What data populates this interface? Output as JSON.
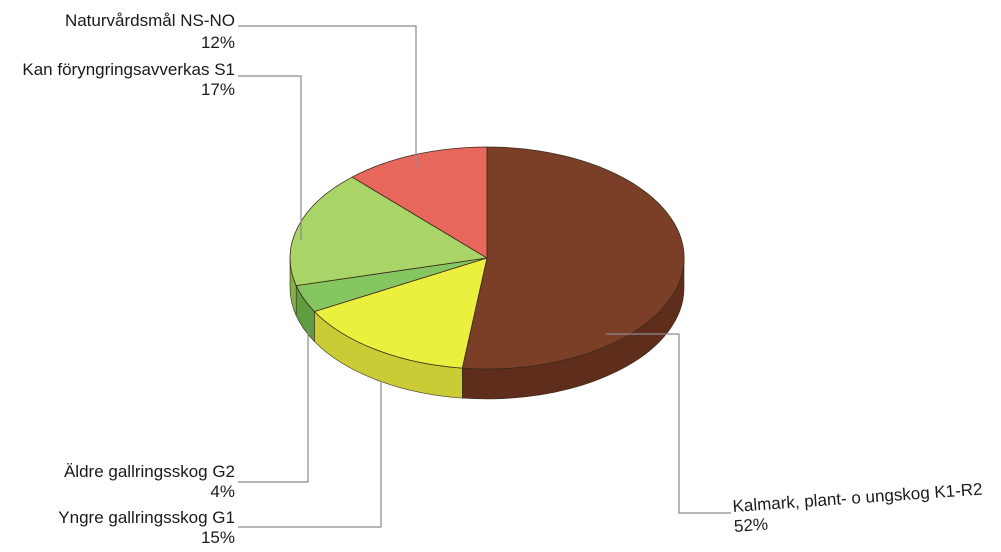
{
  "chart_data": {
    "type": "pie",
    "style": "3d",
    "legend": "none",
    "slices": [
      {
        "label": "Kalmark, plant- o ungskog K1-R2",
        "percent_label": "52%",
        "value": 52,
        "color": "#7b3f28",
        "side_color": "#5f2d1b"
      },
      {
        "label": "Yngre gallringsskog G1",
        "percent_label": "15%",
        "value": 15,
        "color": "#ebef3e",
        "side_color": "#c9cc35"
      },
      {
        "label": "Äldre gallringsskog G2",
        "percent_label": "4%",
        "value": 4,
        "color": "#86c660",
        "side_color": "#5f9b3f"
      },
      {
        "label": "Kan föryngringsavverkas S1",
        "percent_label": "17%",
        "value": 17,
        "color": "#a8d468",
        "side_color": "#86b04e"
      },
      {
        "label": "Naturvårdsmål NS-NO",
        "percent_label": "12%",
        "value": 12,
        "color": "#e8675d",
        "side_color": "#c24e45"
      }
    ]
  }
}
